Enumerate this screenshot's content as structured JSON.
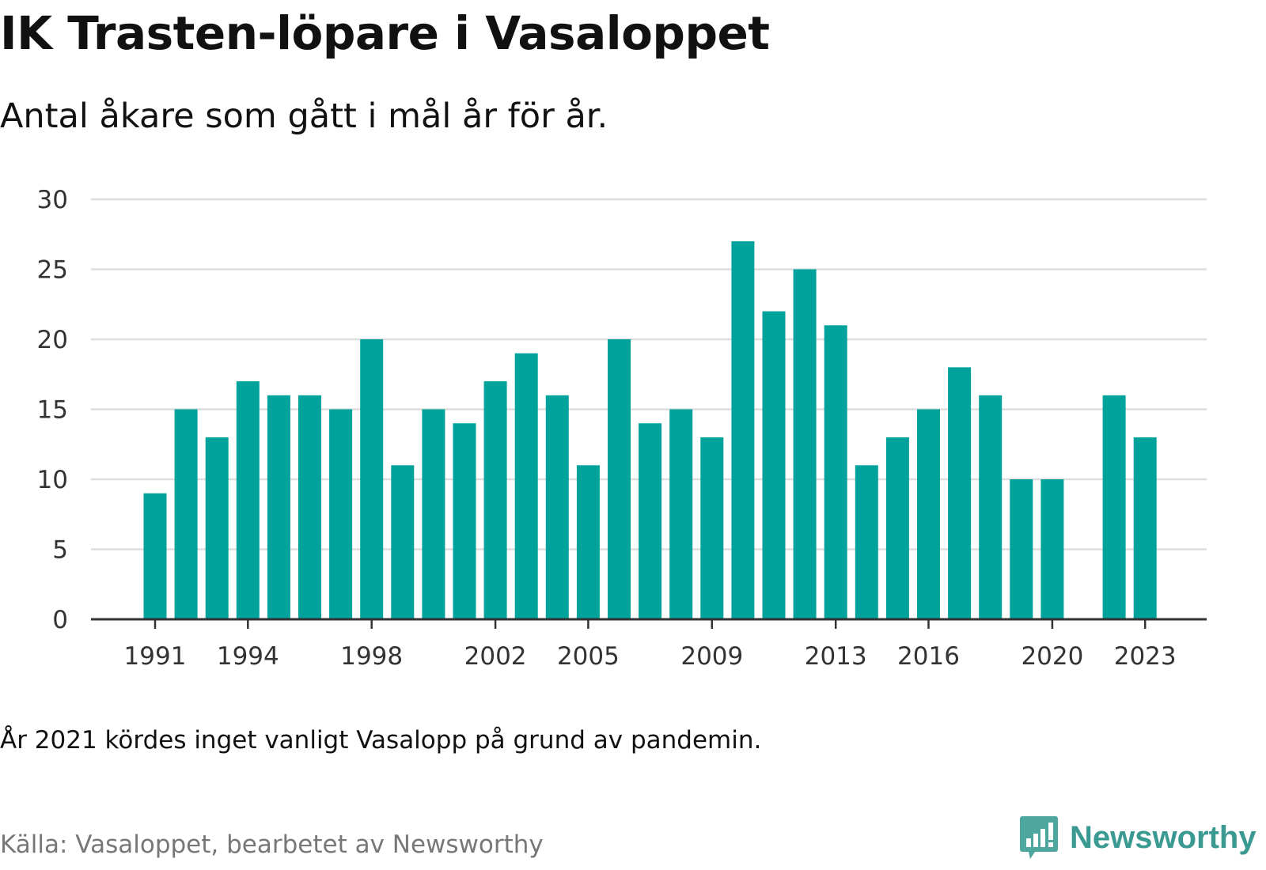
{
  "header": {
    "title": "IK Trasten-löpare i Vasaloppet",
    "subtitle": "Antal åkare som gått i mål år för år."
  },
  "footer": {
    "note": "År 2021 kördes inget vanligt Vasalopp på grund av pandemin.",
    "source": "Källa: Vasaloppet, bearbetet av Newsworthy",
    "brand": "Newsworthy"
  },
  "colors": {
    "bar": "#00a39b",
    "grid": "#dddddd",
    "axis": "#333333",
    "brand": "#3a9a92"
  },
  "chart_data": {
    "type": "bar",
    "x": [
      1991,
      1992,
      1993,
      1994,
      1995,
      1996,
      1997,
      1998,
      1999,
      2000,
      2001,
      2002,
      2003,
      2004,
      2005,
      2006,
      2007,
      2008,
      2009,
      2010,
      2011,
      2012,
      2013,
      2014,
      2015,
      2016,
      2017,
      2018,
      2019,
      2020,
      2021,
      2022,
      2023
    ],
    "values": [
      9,
      15,
      13,
      17,
      16,
      16,
      15,
      20,
      11,
      15,
      14,
      17,
      19,
      16,
      11,
      20,
      14,
      15,
      13,
      27,
      22,
      25,
      21,
      11,
      13,
      15,
      18,
      16,
      10,
      10,
      null,
      16,
      13
    ],
    "x_ticks": [
      "1991",
      "1994",
      "1998",
      "2002",
      "2005",
      "2009",
      "2013",
      "2016",
      "2020",
      "2023"
    ],
    "y_ticks": [
      "0",
      "5",
      "10",
      "15",
      "20",
      "25",
      "30"
    ],
    "ylim": [
      0,
      30
    ],
    "grid": true
  }
}
